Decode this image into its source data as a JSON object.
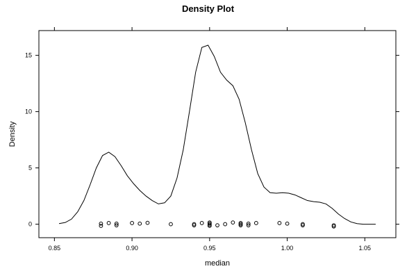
{
  "chart_data": {
    "type": "line",
    "title": "Density Plot",
    "xlabel": "median",
    "ylabel": "Density",
    "xlim": [
      0.84,
      1.07
    ],
    "ylim": [
      -1.2,
      17.2
    ],
    "x_ticks": [
      0.85,
      0.9,
      0.95,
      1.0,
      1.05
    ],
    "x_tick_labels": [
      "0.85",
      "0.90",
      "0.95",
      "1.00",
      "1.05"
    ],
    "y_ticks": [
      0,
      5,
      10,
      15
    ],
    "y_tick_labels": [
      "0",
      "5",
      "10",
      "15"
    ],
    "grid": false,
    "series": [
      {
        "x": [
          0.853,
          0.857,
          0.861,
          0.865,
          0.869,
          0.873,
          0.877,
          0.881,
          0.885,
          0.889,
          0.893,
          0.897,
          0.901,
          0.905,
          0.909,
          0.913,
          0.917,
          0.921,
          0.925,
          0.929,
          0.933,
          0.937,
          0.941,
          0.945,
          0.949,
          0.953,
          0.957,
          0.961,
          0.965,
          0.969,
          0.973,
          0.977,
          0.981,
          0.985,
          0.989,
          0.993,
          0.997,
          1.001,
          1.005,
          1.009,
          1.013,
          1.017,
          1.021,
          1.025,
          1.029,
          1.033,
          1.037,
          1.041,
          1.045,
          1.049,
          1.053,
          1.057
        ],
        "values": [
          0.05,
          0.15,
          0.45,
          1.1,
          2.1,
          3.5,
          5.0,
          6.1,
          6.4,
          6.0,
          5.2,
          4.3,
          3.6,
          3.0,
          2.5,
          2.1,
          1.8,
          1.9,
          2.5,
          4.1,
          6.6,
          10.0,
          13.5,
          15.7,
          15.9,
          14.9,
          13.5,
          12.8,
          12.3,
          11.1,
          9.0,
          6.6,
          4.5,
          3.3,
          2.8,
          2.75,
          2.8,
          2.75,
          2.6,
          2.35,
          2.1,
          2.0,
          1.95,
          1.8,
          1.4,
          0.9,
          0.5,
          0.2,
          0.05,
          0.0,
          0.0,
          0.0
        ]
      }
    ],
    "rug": {
      "x": [
        0.88,
        0.88,
        0.885,
        0.89,
        0.89,
        0.9,
        0.905,
        0.91,
        0.925,
        0.94,
        0.94,
        0.945,
        0.95,
        0.95,
        0.95,
        0.95,
        0.955,
        0.96,
        0.965,
        0.97,
        0.97,
        0.97,
        0.975,
        0.975,
        0.98,
        0.995,
        1.0,
        1.01,
        1.01,
        1.03,
        1.03
      ],
      "y": [
        0.05,
        -0.15,
        0.1,
        0.05,
        -0.1,
        0.1,
        0.05,
        0.12,
        0.0,
        0.0,
        -0.1,
        0.1,
        0.15,
        0.05,
        -0.05,
        -0.15,
        -0.1,
        0.0,
        0.15,
        0.1,
        0.0,
        -0.1,
        0.05,
        -0.1,
        0.1,
        0.1,
        0.05,
        0.0,
        -0.1,
        -0.1,
        -0.2
      ]
    }
  }
}
